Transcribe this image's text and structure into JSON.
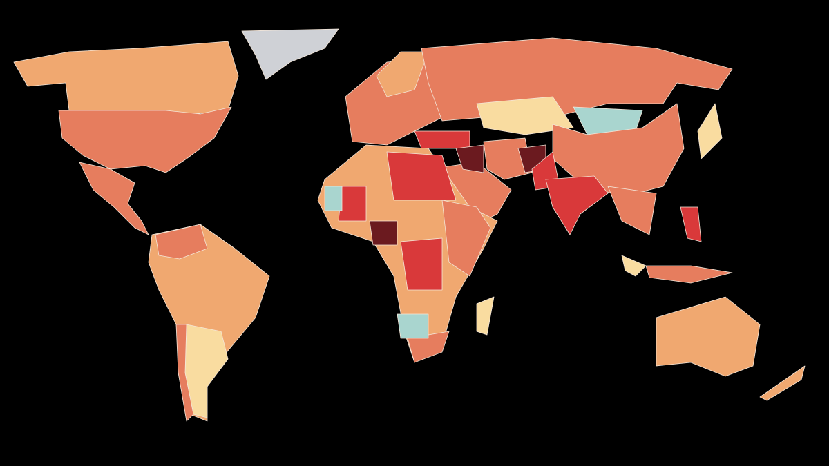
{
  "map": {
    "background": "#000000",
    "border": "#f4e6d8",
    "regions": [
      {
        "color": "#cfd1d6"
      },
      {
        "color": "#f0a870"
      },
      {
        "color": "#e67d5e"
      },
      {
        "color": "#e67d5e"
      },
      {
        "color": "#f0a870"
      },
      {
        "color": "#e67d5e"
      },
      {
        "color": "#f9dca0"
      },
      {
        "color": "#e67d5e"
      },
      {
        "color": "#e67d5e"
      },
      {
        "color": "#f0a870"
      },
      {
        "color": "#e67d5e"
      },
      {
        "color": "#f9dca0"
      },
      {
        "color": "#a9d5cf"
      },
      {
        "color": "#e67d5e"
      },
      {
        "color": "#e67d5e"
      },
      {
        "color": "#d9393a"
      },
      {
        "color": "#6b1a1f"
      },
      {
        "color": "#e67d5e"
      },
      {
        "color": "#6b1a1f"
      },
      {
        "color": "#d9393a"
      },
      {
        "color": "#d9393a"
      },
      {
        "color": "#f0a870"
      },
      {
        "color": "#e67d5e"
      },
      {
        "color": "#d9393a"
      },
      {
        "color": "#f9dca0"
      },
      {
        "color": "#f0a870"
      },
      {
        "color": "#d9393a"
      },
      {
        "color": "#d9393a"
      },
      {
        "color": "#6b1a1f"
      },
      {
        "color": "#e67d5e"
      },
      {
        "color": "#a9d5cf"
      },
      {
        "color": "#e67d5e"
      },
      {
        "color": "#f9dca0"
      },
      {
        "color": "#f0a870"
      },
      {
        "color": "#f9dca0"
      },
      {
        "color": "#d9393a"
      },
      {
        "color": "#a9d5cf"
      },
      {
        "color": "#e67d5e"
      }
    ]
  }
}
